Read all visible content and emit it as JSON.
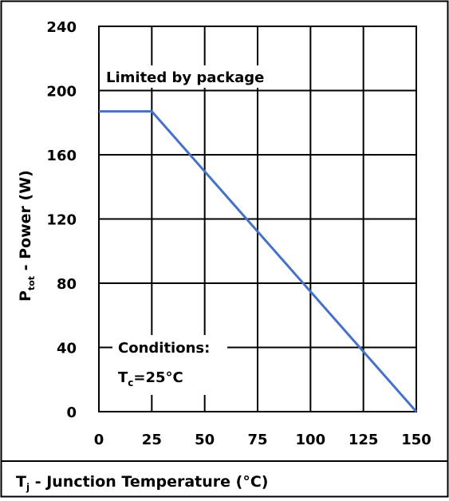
{
  "chart_data": {
    "type": "line",
    "title": "",
    "xlabel": {
      "main": "T",
      "sub": "j",
      "rest": " - Junction Temperature (°C)"
    },
    "ylabel": {
      "main": "P",
      "sub": "tot",
      "rest": " - Power (W)"
    },
    "xlim": [
      0,
      150
    ],
    "ylim": [
      0,
      240
    ],
    "x_ticks": [
      0,
      25,
      50,
      75,
      100,
      125,
      150
    ],
    "y_ticks": [
      0,
      40,
      80,
      120,
      160,
      200,
      240
    ],
    "grid": true,
    "series": [
      {
        "color": "#4472c4",
        "x": [
          0,
          25,
          150
        ],
        "y": [
          187,
          187,
          0
        ]
      }
    ],
    "annotations": {
      "limit": "Limited by package",
      "conditions_title": "Conditions:",
      "conditions_value": {
        "main": "T",
        "sub": "c",
        "rest": "=25°C"
      }
    }
  }
}
